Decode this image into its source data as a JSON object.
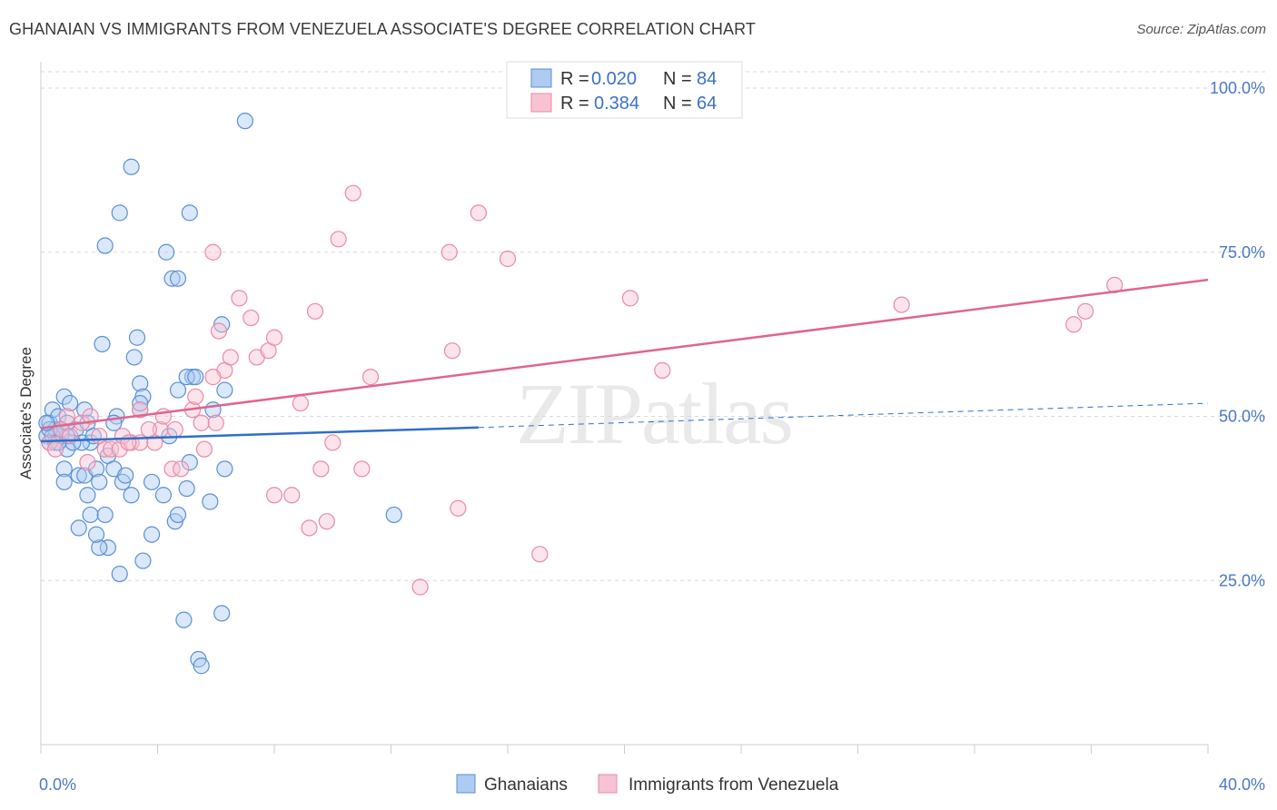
{
  "header": {
    "title": "GHANAIAN VS IMMIGRANTS FROM VENEZUELA ASSOCIATE'S DEGREE CORRELATION CHART",
    "source": "Source: ZipAtlas.com"
  },
  "watermark": "ZIPatlas",
  "colors": {
    "blue_fill": "#aecbf2",
    "blue_stroke": "#5a8fd8",
    "blue_line": "#2f6fc9",
    "pink_fill": "#f7c3d2",
    "pink_stroke": "#e98aa6",
    "pink_line": "#e0658e",
    "axis_label": "#4a78c8",
    "grid": "#d9d9d9"
  },
  "legend": {
    "rows": [
      {
        "r_label": "R =",
        "r_value": "0.020",
        "n_label": "N =",
        "n_value": "84",
        "series": "blue"
      },
      {
        "r_label": "R =",
        "r_value": "0.384",
        "n_label": "N =",
        "n_value": "64",
        "series": "pink"
      }
    ]
  },
  "bottom_legend": [
    "Ghanaians",
    "Immigrants from Venezuela"
  ],
  "chart_data": {
    "type": "scatter",
    "title": "GHANAIAN VS IMMIGRANTS FROM VENEZUELA ASSOCIATE'S DEGREE CORRELATION CHART",
    "xlabel": "",
    "ylabel": "Associate's Degree",
    "xlim": [
      0,
      40
    ],
    "ylim": [
      0,
      105
    ],
    "x_tick_labels": [
      "0.0%",
      "40.0%"
    ],
    "y_ticks": [
      25,
      50,
      75,
      100
    ],
    "y_tick_labels": [
      "25.0%",
      "50.0%",
      "75.0%",
      "100.0%"
    ],
    "grid": true,
    "series": [
      {
        "name": "Ghanaians",
        "color": "blue",
        "r": 0.02,
        "n": 84,
        "trend": {
          "x": [
            0,
            15
          ],
          "y": [
            46.2,
            48.3
          ],
          "dashed_to": [
            40,
            52.0
          ]
        },
        "points": [
          [
            0.2,
            47
          ],
          [
            0.3,
            49
          ],
          [
            0.3,
            46
          ],
          [
            0.4,
            51
          ],
          [
            0.5,
            48
          ],
          [
            0.6,
            50
          ],
          [
            0.7,
            47
          ],
          [
            0.8,
            53
          ],
          [
            0.9,
            45
          ],
          [
            1.0,
            52
          ],
          [
            1.2,
            48
          ],
          [
            1.5,
            51
          ],
          [
            1.6,
            49
          ],
          [
            0.8,
            42
          ],
          [
            0.8,
            40
          ],
          [
            1.3,
            41
          ],
          [
            1.5,
            41
          ],
          [
            1.6,
            38
          ],
          [
            1.9,
            42
          ],
          [
            1.7,
            46
          ],
          [
            2.0,
            40
          ],
          [
            2.3,
            44
          ],
          [
            2.5,
            42
          ],
          [
            2.6,
            50
          ],
          [
            2.8,
            40
          ],
          [
            3.1,
            38
          ],
          [
            3.4,
            55
          ],
          [
            3.5,
            53
          ],
          [
            3.4,
            51
          ],
          [
            3.8,
            40
          ],
          [
            4.2,
            38
          ],
          [
            4.6,
            34
          ],
          [
            4.7,
            35
          ],
          [
            5.1,
            43
          ],
          [
            5.0,
            39
          ],
          [
            4.4,
            47
          ],
          [
            5.2,
            56
          ],
          [
            5.0,
            56
          ],
          [
            5.9,
            51
          ],
          [
            6.3,
            54
          ],
          [
            6.3,
            42
          ],
          [
            5.8,
            37
          ],
          [
            3.8,
            32
          ],
          [
            3.5,
            28
          ],
          [
            2.7,
            26
          ],
          [
            2.3,
            30
          ],
          [
            2.0,
            30
          ],
          [
            1.9,
            32
          ],
          [
            1.7,
            35
          ],
          [
            2.2,
            35
          ],
          [
            1.3,
            33
          ],
          [
            3.3,
            62
          ],
          [
            3.2,
            59
          ],
          [
            2.1,
            61
          ],
          [
            2.2,
            76
          ],
          [
            2.7,
            81
          ],
          [
            3.1,
            88
          ],
          [
            4.3,
            75
          ],
          [
            4.5,
            71
          ],
          [
            4.7,
            71
          ],
          [
            5.1,
            81
          ],
          [
            6.2,
            64
          ],
          [
            7.0,
            95
          ],
          [
            12.1,
            35
          ],
          [
            6.2,
            20
          ],
          [
            4.9,
            19
          ],
          [
            5.4,
            13
          ],
          [
            5.5,
            12
          ],
          [
            1.4,
            46
          ],
          [
            1.1,
            46
          ],
          [
            0.9,
            47
          ],
          [
            0.5,
            46
          ],
          [
            0.4,
            47
          ],
          [
            0.3,
            48
          ],
          [
            0.2,
            49
          ],
          [
            0.6,
            46
          ],
          [
            0.7,
            48
          ],
          [
            0.9,
            49
          ],
          [
            1.8,
            47
          ],
          [
            2.5,
            49
          ],
          [
            3.4,
            52
          ],
          [
            4.7,
            54
          ],
          [
            5.3,
            56
          ],
          [
            2.9,
            41
          ]
        ]
      },
      {
        "name": "Immigrants from Venezuela",
        "color": "pink",
        "r": 0.384,
        "n": 64,
        "trend": {
          "x": [
            0,
            40
          ],
          "y": [
            48.2,
            70.8
          ]
        },
        "points": [
          [
            0.3,
            46
          ],
          [
            0.5,
            45
          ],
          [
            0.7,
            48
          ],
          [
            0.9,
            50
          ],
          [
            1.0,
            47
          ],
          [
            1.4,
            49
          ],
          [
            1.6,
            43
          ],
          [
            2.0,
            47
          ],
          [
            2.2,
            45
          ],
          [
            2.4,
            45
          ],
          [
            2.7,
            45
          ],
          [
            3.1,
            46
          ],
          [
            3.4,
            46
          ],
          [
            3.9,
            46
          ],
          [
            4.1,
            48
          ],
          [
            4.5,
            42
          ],
          [
            4.8,
            42
          ],
          [
            5.2,
            51
          ],
          [
            5.5,
            49
          ],
          [
            5.6,
            45
          ],
          [
            5.9,
            75
          ],
          [
            6.1,
            63
          ],
          [
            6.3,
            57
          ],
          [
            6.5,
            59
          ],
          [
            6.8,
            68
          ],
          [
            7.2,
            65
          ],
          [
            7.4,
            59
          ],
          [
            7.8,
            60
          ],
          [
            8.0,
            62
          ],
          [
            8.0,
            38
          ],
          [
            8.6,
            38
          ],
          [
            8.9,
            52
          ],
          [
            9.2,
            33
          ],
          [
            9.4,
            66
          ],
          [
            9.6,
            42
          ],
          [
            9.8,
            34
          ],
          [
            10.0,
            46
          ],
          [
            10.2,
            77
          ],
          [
            10.7,
            84
          ],
          [
            11.0,
            42
          ],
          [
            11.3,
            56
          ],
          [
            13.0,
            24
          ],
          [
            14.1,
            60
          ],
          [
            14.0,
            75
          ],
          [
            14.3,
            36
          ],
          [
            15.0,
            81
          ],
          [
            16.0,
            74
          ],
          [
            17.1,
            29
          ],
          [
            20.2,
            68
          ],
          [
            21.3,
            57
          ],
          [
            29.5,
            67
          ],
          [
            35.4,
            64
          ],
          [
            35.8,
            66
          ],
          [
            36.8,
            70
          ],
          [
            2.8,
            47
          ],
          [
            3.4,
            51
          ],
          [
            3.0,
            46
          ],
          [
            1.7,
            50
          ],
          [
            5.3,
            53
          ],
          [
            4.6,
            48
          ],
          [
            6.0,
            49
          ],
          [
            3.7,
            48
          ],
          [
            5.9,
            56
          ],
          [
            4.2,
            50
          ]
        ]
      }
    ]
  }
}
